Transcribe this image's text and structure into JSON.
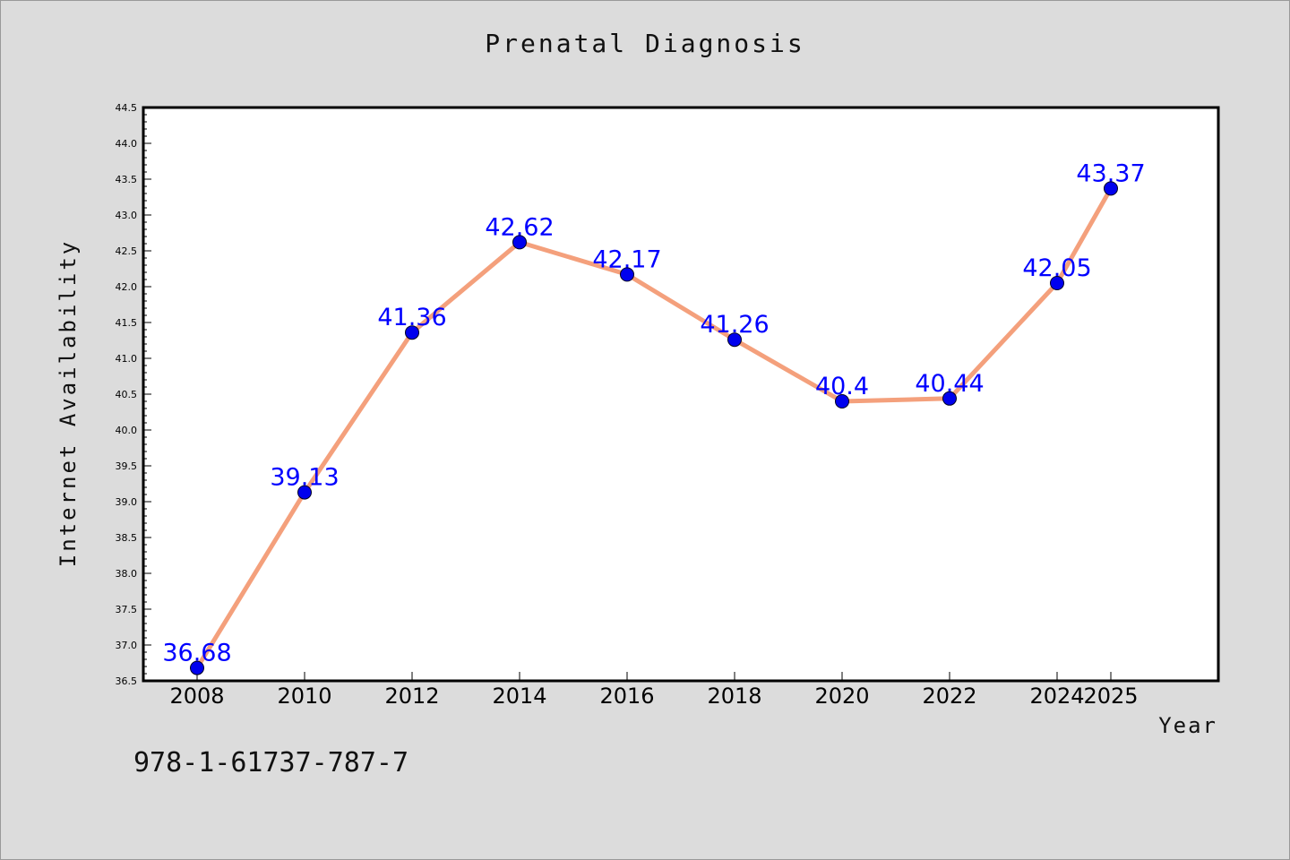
{
  "chart_data": {
    "type": "line",
    "title": "Prenatal Diagnosis",
    "xlabel": "Year",
    "ylabel": "Internet Availability",
    "categories": [
      "2008",
      "2010",
      "2012",
      "2014",
      "2016",
      "2018",
      "2020",
      "2022",
      "2024",
      "2025"
    ],
    "series": [
      {
        "values": [
          36.68,
          39.13,
          41.36,
          42.62,
          42.17,
          41.26,
          40.4,
          40.44,
          42.05,
          43.37
        ],
        "labels": [
          "36.68",
          "39.13",
          "41.36",
          "42.62",
          "42.17",
          "41.26",
          "40.4",
          "40.44",
          "42.05",
          "43.37"
        ],
        "line_color": "#f4a07c",
        "marker_color": "#0000ee"
      }
    ],
    "ylim": [
      36.5,
      44.5
    ],
    "yticks": [
      "36.5",
      "37.0",
      "37.5",
      "38.0",
      "38.5",
      "39.0",
      "39.5",
      "40.0",
      "40.5",
      "41.0",
      "41.5",
      "42.0",
      "42.5",
      "43.0",
      "43.5",
      "44.0",
      "44.5"
    ],
    "grid": false,
    "label_color": "#0000ff"
  },
  "footer_text": "978-1-61737-787-7"
}
